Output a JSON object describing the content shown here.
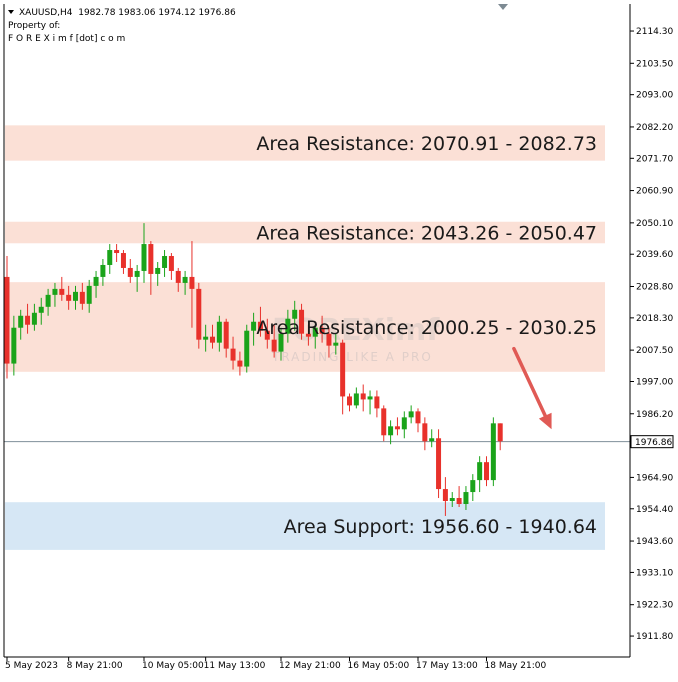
{
  "header": {
    "symbol_line": "XAUUSD,H4  1982.78 1983.06 1974.12 1976.86",
    "property_line": "Property of:",
    "owner_line": "F O R E X i m f [dot] c o m"
  },
  "watermark": {
    "brand": "FOREXimf",
    "tagline": "TRADING LIKE A PRO"
  },
  "colors": {
    "bull": "#1aa31a",
    "bear": "#e8312b",
    "resistance_fill": "#fbe0d6",
    "support_fill": "#d6e7f5",
    "current_price_line": "#7f8f99",
    "arrow": "#e05a55"
  },
  "chart_data": {
    "type": "candlestick",
    "symbol": "XAUUSD",
    "timeframe": "H4",
    "ylim": [
      1906.0,
      2123.0
    ],
    "y_ticks": [
      "2114.30",
      "2103.50",
      "2093.00",
      "2082.20",
      "2071.70",
      "2060.90",
      "2050.10",
      "2039.60",
      "2028.80",
      "2018.30",
      "2007.50",
      "1997.00",
      "1986.20",
      "1964.90",
      "1954.40",
      "1943.60",
      "1933.10",
      "1922.30",
      "1911.80"
    ],
    "x_ticks": [
      {
        "index": 0,
        "label": "5 May 2023"
      },
      {
        "index": 9,
        "label": "8 May 21:00"
      },
      {
        "index": 20,
        "label": "10 May 05:00"
      },
      {
        "index": 29,
        "label": "11 May 13:00"
      },
      {
        "index": 40,
        "label": "12 May 21:00"
      },
      {
        "index": 50,
        "label": "16 May 05:00"
      },
      {
        "index": 60,
        "label": "17 May 13:00"
      },
      {
        "index": 70,
        "label": "18 May 21:00"
      }
    ],
    "current_price": {
      "value": 1976.86,
      "label": "1976.86"
    },
    "zones": [
      {
        "kind": "resistance",
        "low": 2070.91,
        "high": 2082.73,
        "label": "Area Resistance: 2070.91 - 2082.73"
      },
      {
        "kind": "resistance",
        "low": 2043.26,
        "high": 2050.47,
        "label": "Area Resistance: 2043.26 - 2050.47"
      },
      {
        "kind": "resistance",
        "low": 2000.25,
        "high": 2030.25,
        "label": "Area Resistance: 2000.25 - 2030.25"
      },
      {
        "kind": "support",
        "low": 1940.64,
        "high": 1956.6,
        "label": "Area Support: 1956.60 - 1940.64"
      }
    ],
    "forecast_arrow": {
      "from": {
        "index": 74,
        "price": 2008.0
      },
      "to": {
        "index": 79.5,
        "price": 1981.0
      }
    },
    "candles": [
      [
        2032,
        2039,
        1998,
        2003
      ],
      [
        2003,
        2019,
        1999,
        2015
      ],
      [
        2015,
        2021,
        2011,
        2019
      ],
      [
        2019,
        2023,
        2013,
        2016
      ],
      [
        2016,
        2023,
        2014,
        2020
      ],
      [
        2020,
        2025,
        2016,
        2022
      ],
      [
        2022,
        2028,
        2019,
        2026
      ],
      [
        2026,
        2030,
        2022,
        2028
      ],
      [
        2028,
        2032,
        2024,
        2026
      ],
      [
        2026,
        2029,
        2021,
        2024
      ],
      [
        2024,
        2029,
        2021,
        2027
      ],
      [
        2027,
        2030,
        2021,
        2023
      ],
      [
        2023,
        2031,
        2020,
        2029
      ],
      [
        2029,
        2034,
        2025,
        2032
      ],
      [
        2032,
        2038,
        2029,
        2036
      ],
      [
        2036,
        2043,
        2033,
        2041
      ],
      [
        2041,
        2043,
        2037,
        2040
      ],
      [
        2040,
        2041,
        2033,
        2035
      ],
      [
        2035,
        2038,
        2030,
        2032
      ],
      [
        2032,
        2036,
        2027,
        2034
      ],
      [
        2034,
        2050,
        2030,
        2043
      ],
      [
        2043,
        2044,
        2026,
        2033
      ],
      [
        2033,
        2037,
        2029,
        2035
      ],
      [
        2035,
        2041,
        2032,
        2039
      ],
      [
        2039,
        2040,
        2031,
        2034
      ],
      [
        2034,
        2035,
        2027,
        2030
      ],
      [
        2030,
        2034,
        2026,
        2032
      ],
      [
        2032,
        2044,
        2015,
        2028
      ],
      [
        2028,
        2030,
        2008,
        2011
      ],
      [
        2011,
        2016,
        2007,
        2012
      ],
      [
        2012,
        2016,
        2008,
        2010
      ],
      [
        2010,
        2019,
        2007,
        2017
      ],
      [
        2017,
        2018,
        2005,
        2008
      ],
      [
        2008,
        2012,
        2001,
        2004
      ],
      [
        2004,
        2007,
        1999,
        2002
      ],
      [
        2002,
        2016,
        2000,
        2014
      ],
      [
        2014,
        2020,
        2009,
        2017
      ],
      [
        2017,
        2022,
        2012,
        2014
      ],
      [
        2014,
        2018,
        2008,
        2011
      ],
      [
        2011,
        2016,
        2005,
        2007
      ],
      [
        2007,
        2015,
        2004,
        2013
      ],
      [
        2013,
        2021,
        2010,
        2018
      ],
      [
        2018,
        2024,
        2014,
        2021
      ],
      [
        2021,
        2023,
        2011,
        2013
      ],
      [
        2013,
        2016,
        2009,
        2012
      ],
      [
        2012,
        2016,
        2008,
        2015
      ],
      [
        2015,
        2019,
        2010,
        2013
      ],
      [
        2013,
        2015,
        2005,
        2009
      ],
      [
        2009,
        2013,
        2006,
        2010
      ],
      [
        2010,
        2011,
        1986,
        1992
      ],
      [
        1992,
        1993,
        1987,
        1989
      ],
      [
        1989,
        1995,
        1988,
        1993
      ],
      [
        1993,
        1996,
        1987,
        1991
      ],
      [
        1991,
        1994,
        1986,
        1992
      ],
      [
        1992,
        1994,
        1985,
        1988
      ],
      [
        1988,
        1989,
        1977,
        1979
      ],
      [
        1979,
        1984,
        1976,
        1982
      ],
      [
        1982,
        1985,
        1979,
        1981
      ],
      [
        1981,
        1987,
        1978,
        1985
      ],
      [
        1985,
        1989,
        1983,
        1987
      ],
      [
        1987,
        1988,
        1980,
        1983
      ],
      [
        1983,
        1985,
        1974,
        1977
      ],
      [
        1977,
        1981,
        1975,
        1978
      ],
      [
        1978,
        1981,
        1958,
        1961
      ],
      [
        1961,
        1965,
        1952,
        1957
      ],
      [
        1957,
        1960,
        1955,
        1958
      ],
      [
        1958,
        1962,
        1955,
        1956
      ],
      [
        1956,
        1962,
        1954,
        1960
      ],
      [
        1960,
        1966,
        1957,
        1964
      ],
      [
        1964,
        1972,
        1960,
        1970
      ],
      [
        1970,
        1972,
        1962,
        1964
      ],
      [
        1964,
        1985,
        1962,
        1983
      ],
      [
        1983,
        1983,
        1974,
        1977
      ]
    ]
  }
}
